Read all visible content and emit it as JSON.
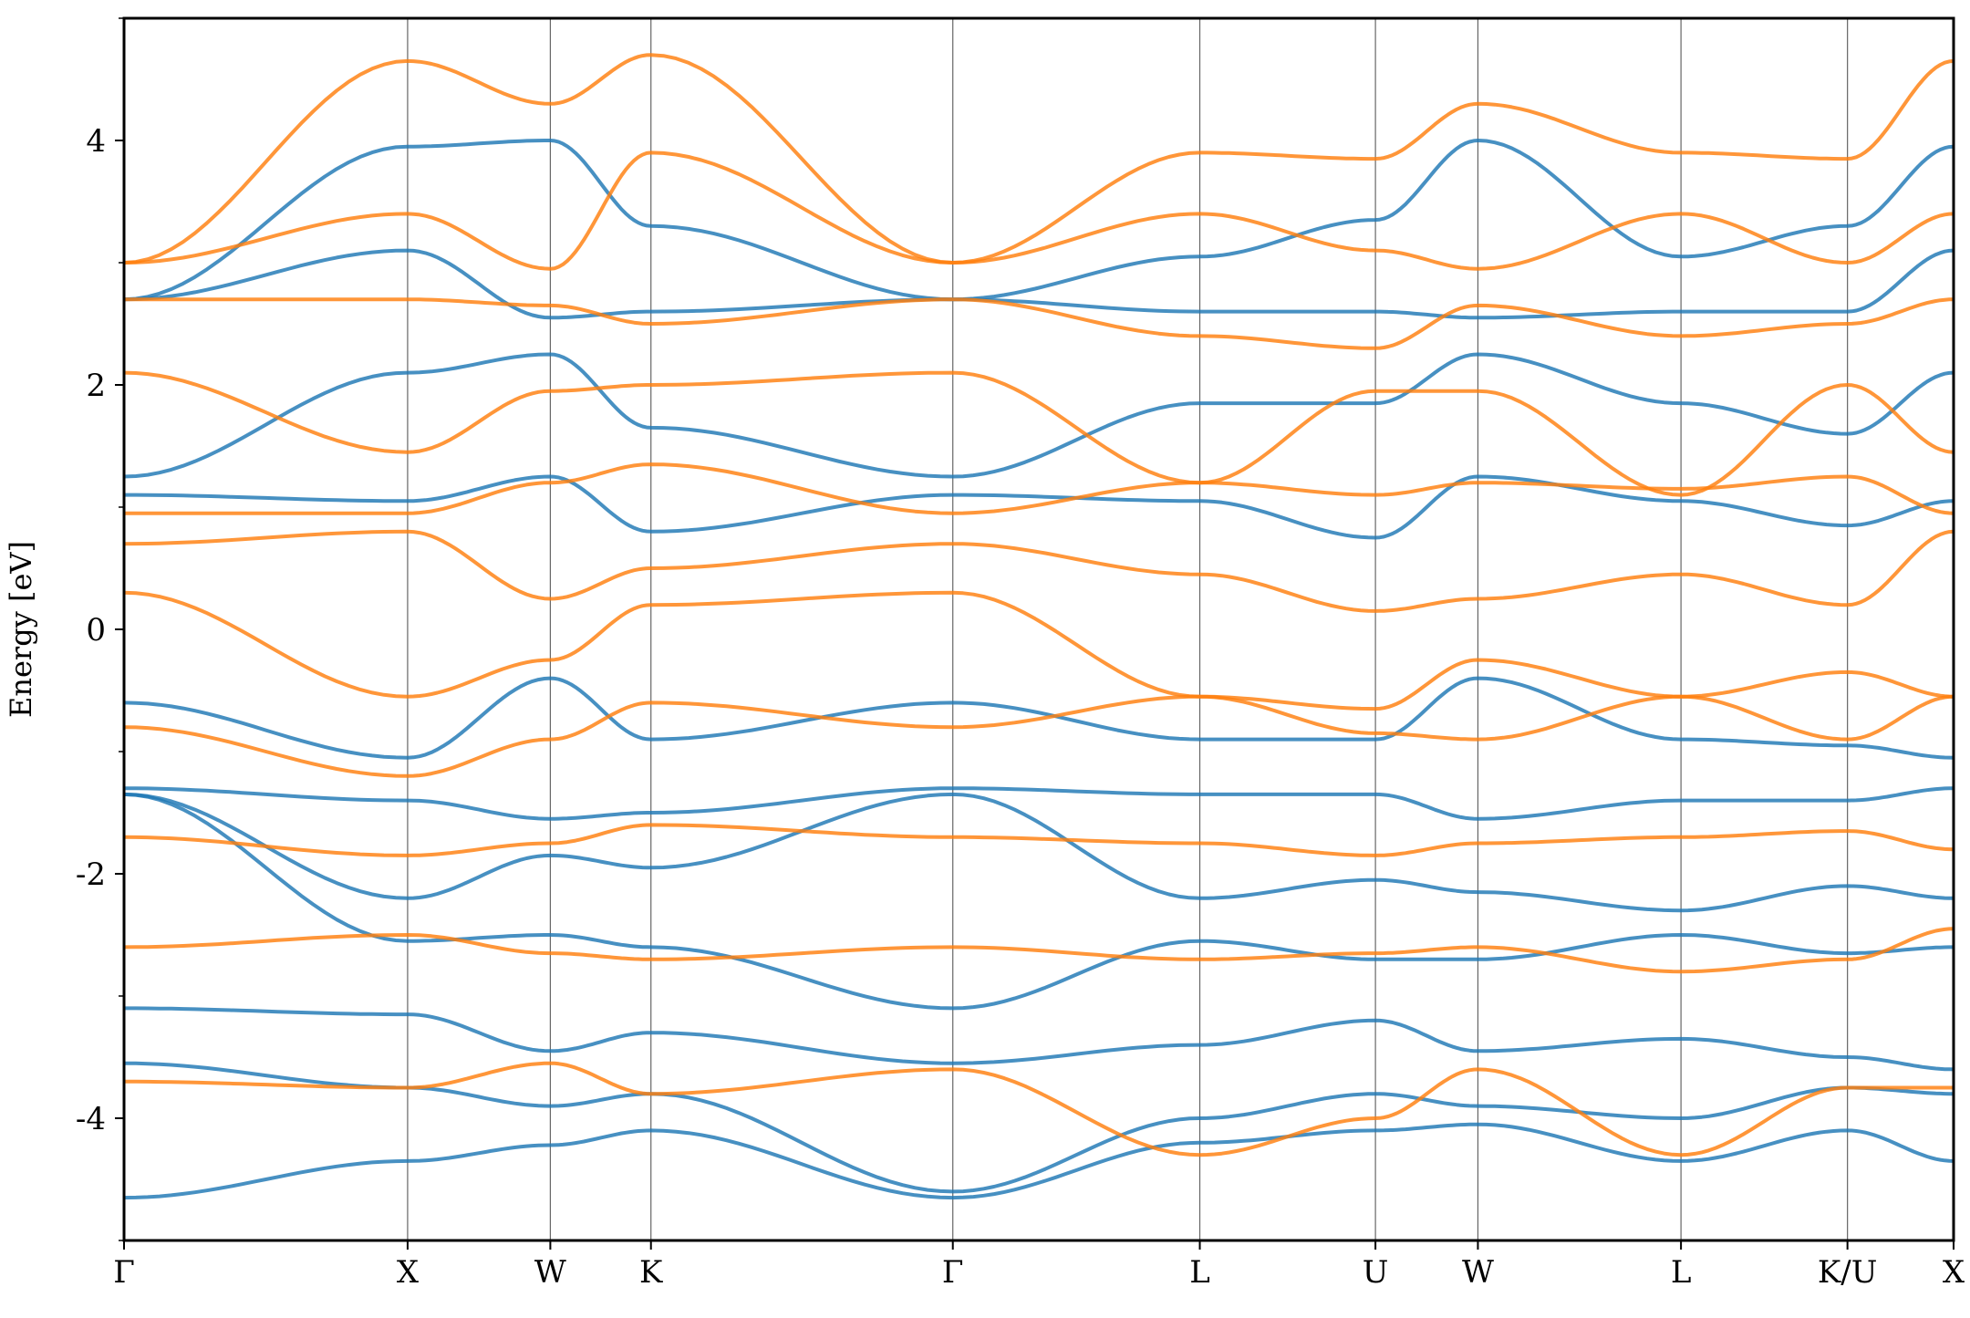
{
  "chart_data": {
    "type": "line",
    "title": "",
    "xlabel": "",
    "ylabel": "Energy [eV]",
    "ylim": [
      -5,
      5
    ],
    "y_ticks": [
      -4,
      -2,
      0,
      2,
      4
    ],
    "y_tick_labels": [
      "-4",
      "-2",
      "0",
      "2",
      "4"
    ],
    "y_minor_ticks": [
      -5,
      -3,
      -1,
      1,
      3,
      5
    ],
    "grid": false,
    "legend": "none",
    "colors": {
      "spin_up": "#1f77b4",
      "spin_down": "#ff7f0e",
      "kpoint_line": "#000000"
    },
    "kpath": {
      "x_range": [
        0,
        1
      ],
      "labels": [
        "Γ",
        "X",
        "W",
        "K",
        "Γ",
        "L",
        "U",
        "W",
        "L",
        "K/U",
        "X"
      ],
      "positions": [
        0.0,
        0.155,
        0.233,
        0.288,
        0.453,
        0.588,
        0.684,
        0.74,
        0.851,
        0.942,
        1.0
      ]
    },
    "series": [
      {
        "color": "#1f77b4",
        "x": [
          0,
          0.155,
          0.233,
          0.288,
          0.453,
          0.588,
          0.684,
          0.74,
          0.851,
          0.942,
          1.0
        ],
        "y": [
          -4.65,
          -4.35,
          -4.22,
          -4.1,
          -4.65,
          -4.2,
          -4.1,
          -4.05,
          -4.35,
          -4.1,
          -4.35
        ]
      },
      {
        "color": "#1f77b4",
        "x": [
          0,
          0.155,
          0.233,
          0.288,
          0.453,
          0.588,
          0.684,
          0.74,
          0.851,
          0.942,
          1.0
        ],
        "y": [
          -3.55,
          -3.75,
          -3.9,
          -3.8,
          -4.6,
          -4.0,
          -3.8,
          -3.9,
          -4.0,
          -3.75,
          -3.8
        ]
      },
      {
        "color": "#1f77b4",
        "x": [
          0,
          0.155,
          0.233,
          0.288,
          0.453,
          0.588,
          0.684,
          0.74,
          0.851,
          0.942,
          1.0
        ],
        "y": [
          -3.1,
          -3.15,
          -3.45,
          -3.3,
          -3.55,
          -3.4,
          -3.2,
          -3.45,
          -3.35,
          -3.5,
          -3.6
        ]
      },
      {
        "color": "#1f77b4",
        "x": [
          0,
          0.155,
          0.233,
          0.288,
          0.453,
          0.588,
          0.684,
          0.74,
          0.851,
          0.942,
          1.0
        ],
        "y": [
          -1.35,
          -2.55,
          -2.5,
          -2.6,
          -3.1,
          -2.55,
          -2.7,
          -2.7,
          -2.5,
          -2.65,
          -2.6
        ]
      },
      {
        "color": "#1f77b4",
        "x": [
          0,
          0.155,
          0.233,
          0.288,
          0.453,
          0.588,
          0.684,
          0.74,
          0.851,
          0.942,
          1.0
        ],
        "y": [
          -1.35,
          -2.2,
          -1.85,
          -1.95,
          -1.35,
          -2.2,
          -2.05,
          -2.15,
          -2.3,
          -2.1,
          -2.2
        ]
      },
      {
        "color": "#1f77b4",
        "x": [
          0,
          0.155,
          0.233,
          0.288,
          0.453,
          0.588,
          0.684,
          0.74,
          0.851,
          0.942,
          1.0
        ],
        "y": [
          -1.3,
          -1.4,
          -1.55,
          -1.5,
          -1.3,
          -1.35,
          -1.35,
          -1.55,
          -1.4,
          -1.4,
          -1.3
        ]
      },
      {
        "color": "#1f77b4",
        "x": [
          0,
          0.155,
          0.233,
          0.288,
          0.453,
          0.588,
          0.684,
          0.74,
          0.851,
          0.942,
          1.0
        ],
        "y": [
          -0.6,
          -1.05,
          -0.4,
          -0.9,
          -0.6,
          -0.9,
          -0.9,
          -0.4,
          -0.9,
          -0.95,
          -1.05
        ]
      },
      {
        "color": "#1f77b4",
        "x": [
          0,
          0.155,
          0.233,
          0.288,
          0.453,
          0.588,
          0.684,
          0.74,
          0.851,
          0.942,
          1.0
        ],
        "y": [
          1.1,
          1.05,
          1.25,
          0.8,
          1.1,
          1.05,
          0.75,
          1.25,
          1.05,
          0.85,
          1.05
        ]
      },
      {
        "color": "#1f77b4",
        "x": [
          0,
          0.155,
          0.233,
          0.288,
          0.453,
          0.588,
          0.684,
          0.74,
          0.851,
          0.942,
          1.0
        ],
        "y": [
          1.25,
          2.1,
          2.25,
          1.65,
          1.25,
          1.85,
          1.85,
          2.25,
          1.85,
          1.6,
          2.1
        ]
      },
      {
        "color": "#1f77b4",
        "x": [
          0,
          0.155,
          0.233,
          0.288,
          0.453,
          0.588,
          0.684,
          0.74,
          0.851,
          0.942,
          1.0
        ],
        "y": [
          2.7,
          3.1,
          2.55,
          2.6,
          2.7,
          2.6,
          2.6,
          2.55,
          2.6,
          2.6,
          3.1
        ]
      },
      {
        "color": "#1f77b4",
        "x": [
          0,
          0.155,
          0.233,
          0.288,
          0.453,
          0.588,
          0.684,
          0.74,
          0.851,
          0.942,
          1.0
        ],
        "y": [
          2.7,
          3.95,
          4.0,
          3.3,
          2.7,
          3.05,
          3.35,
          4.0,
          3.05,
          3.3,
          3.95
        ]
      },
      {
        "color": "#ff7f0e",
        "x": [
          0,
          0.155,
          0.233,
          0.288,
          0.453,
          0.588,
          0.684,
          0.74,
          0.851,
          0.942,
          1.0
        ],
        "y": [
          -3.7,
          -3.75,
          -3.55,
          -3.8,
          -3.6,
          -4.3,
          -4.0,
          -3.6,
          -4.3,
          -3.75,
          -3.75
        ]
      },
      {
        "color": "#ff7f0e",
        "x": [
          0,
          0.155,
          0.233,
          0.288,
          0.453,
          0.588,
          0.684,
          0.74,
          0.851,
          0.942,
          1.0
        ],
        "y": [
          -2.6,
          -2.5,
          -2.65,
          -2.7,
          -2.6,
          -2.7,
          -2.65,
          -2.6,
          -2.8,
          -2.7,
          -2.45
        ]
      },
      {
        "color": "#ff7f0e",
        "x": [
          0,
          0.155,
          0.233,
          0.288,
          0.453,
          0.588,
          0.684,
          0.74,
          0.851,
          0.942,
          1.0
        ],
        "y": [
          -1.7,
          -1.85,
          -1.75,
          -1.6,
          -1.7,
          -1.75,
          -1.85,
          -1.75,
          -1.7,
          -1.65,
          -1.8
        ]
      },
      {
        "color": "#ff7f0e",
        "x": [
          0,
          0.155,
          0.233,
          0.288,
          0.453,
          0.588,
          0.684,
          0.74,
          0.851,
          0.942,
          1.0
        ],
        "y": [
          -0.8,
          -1.2,
          -0.9,
          -0.6,
          -0.8,
          -0.55,
          -0.85,
          -0.9,
          -0.55,
          -0.9,
          -0.55
        ]
      },
      {
        "color": "#ff7f0e",
        "x": [
          0,
          0.155,
          0.233,
          0.288,
          0.453,
          0.588,
          0.684,
          0.74,
          0.851,
          0.942,
          1.0
        ],
        "y": [
          0.3,
          -0.55,
          -0.25,
          0.2,
          0.3,
          -0.55,
          -0.65,
          -0.25,
          -0.55,
          -0.35,
          -0.55
        ]
      },
      {
        "color": "#ff7f0e",
        "x": [
          0,
          0.155,
          0.233,
          0.288,
          0.453,
          0.588,
          0.684,
          0.74,
          0.851,
          0.942,
          1.0
        ],
        "y": [
          0.7,
          0.8,
          0.25,
          0.5,
          0.7,
          0.45,
          0.15,
          0.25,
          0.45,
          0.2,
          0.8
        ]
      },
      {
        "color": "#ff7f0e",
        "x": [
          0,
          0.155,
          0.233,
          0.288,
          0.453,
          0.588,
          0.684,
          0.74,
          0.851,
          0.942,
          1.0
        ],
        "y": [
          0.95,
          0.95,
          1.2,
          1.35,
          0.95,
          1.2,
          1.1,
          1.2,
          1.15,
          1.25,
          0.95
        ]
      },
      {
        "color": "#ff7f0e",
        "x": [
          0,
          0.155,
          0.233,
          0.288,
          0.453,
          0.588,
          0.684,
          0.74,
          0.851,
          0.942,
          1.0
        ],
        "y": [
          2.1,
          1.45,
          1.95,
          2.0,
          2.1,
          1.2,
          1.95,
          1.95,
          1.1,
          2.0,
          1.45
        ]
      },
      {
        "color": "#ff7f0e",
        "x": [
          0,
          0.155,
          0.233,
          0.288,
          0.453,
          0.588,
          0.684,
          0.74,
          0.851,
          0.942,
          1.0
        ],
        "y": [
          2.7,
          2.7,
          2.65,
          2.5,
          2.7,
          2.4,
          2.3,
          2.65,
          2.4,
          2.5,
          2.7
        ]
      },
      {
        "color": "#ff7f0e",
        "x": [
          0,
          0.155,
          0.233,
          0.288,
          0.453,
          0.588,
          0.684,
          0.74,
          0.851,
          0.942,
          1.0
        ],
        "y": [
          3.0,
          3.4,
          2.95,
          3.9,
          3.0,
          3.4,
          3.1,
          2.95,
          3.4,
          3.0,
          3.4
        ]
      },
      {
        "color": "#ff7f0e",
        "x": [
          0,
          0.155,
          0.233,
          0.288,
          0.453,
          0.588,
          0.684,
          0.74,
          0.851,
          0.942,
          1.0
        ],
        "y": [
          3.0,
          4.65,
          4.3,
          4.7,
          3.0,
          3.9,
          3.85,
          4.3,
          3.9,
          3.85,
          4.65
        ]
      }
    ]
  }
}
